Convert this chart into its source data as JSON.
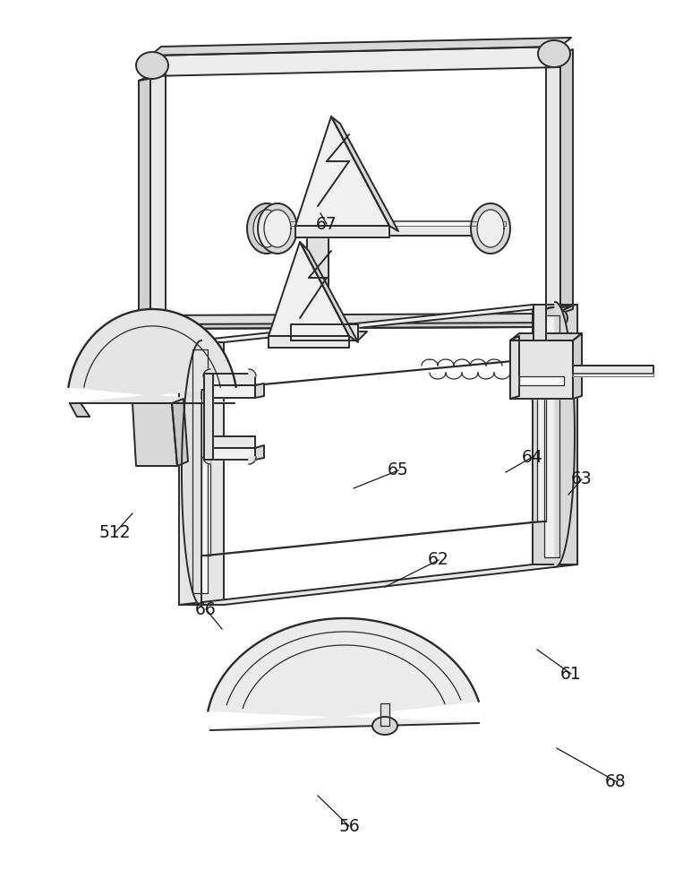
{
  "bg_color": "#ffffff",
  "line_color": "#2a2a2a",
  "fill_white": "#ffffff",
  "fill_light": "#f0f0f0",
  "fill_mid": "#e0e0e0",
  "fill_gray": "#cccccc",
  "fill_dark": "#b8b8b8",
  "lw_main": 1.4,
  "lw_thin": 0.9,
  "labels": [
    [
      "56",
      390,
      78,
      355,
      112
    ],
    [
      "61",
      638,
      248,
      600,
      275
    ],
    [
      "62",
      490,
      375,
      430,
      345
    ],
    [
      "63",
      650,
      465,
      635,
      448
    ],
    [
      "64",
      595,
      490,
      565,
      473
    ],
    [
      "65",
      445,
      475,
      395,
      455
    ],
    [
      "66",
      230,
      320,
      248,
      298
    ],
    [
      "67",
      365,
      750,
      358,
      762
    ],
    [
      "68",
      688,
      128,
      622,
      165
    ],
    [
      "512",
      128,
      405,
      148,
      427
    ]
  ]
}
